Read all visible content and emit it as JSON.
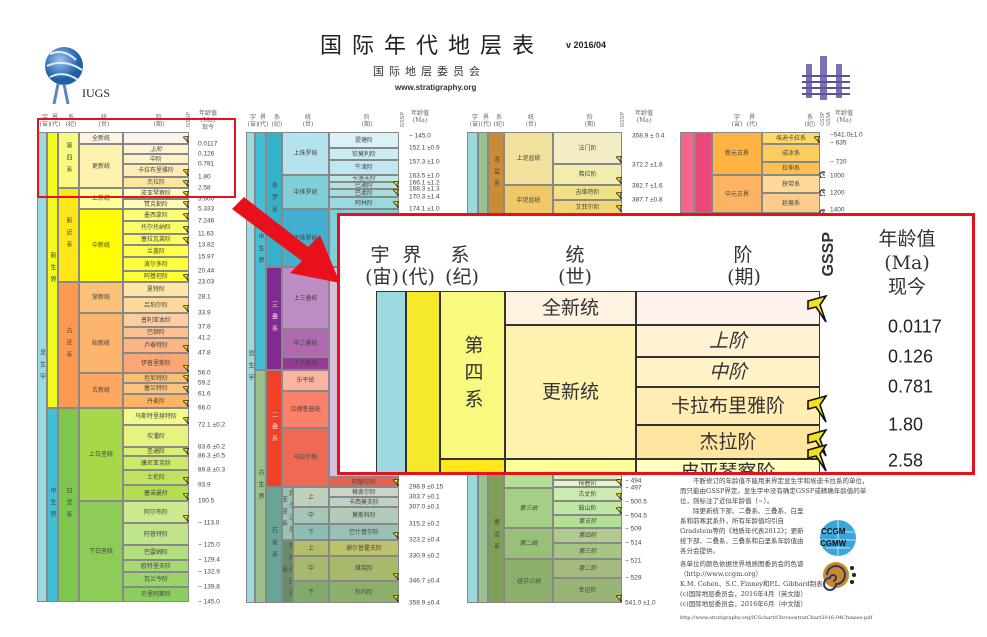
{
  "header": {
    "title": "国际年代地层表",
    "version": "v 2016/04",
    "subtitle": "国际地层委员会",
    "site": "www.stratigraphy.org"
  },
  "logos": {
    "iugs": "IUGS",
    "ccgm_top": "CCGM",
    "ccgm_bottom": "CGMW"
  },
  "colors": {
    "highlight": "#e8101a",
    "gssp_spike": "#f5e21a"
  },
  "col_headers": {
    "eon": "宇",
    "eon_sub": "(宙)",
    "era": "界",
    "era_sub": "(代)",
    "period": "系",
    "period_sub": "(纪)",
    "series": "统",
    "series_sub": "(世)",
    "stage": "阶",
    "stage_sub": "(期)",
    "gssp": "GSSP",
    "gssa": "GSSA",
    "age": "年龄值",
    "age_unit": "(Ma)",
    "age_now": "现今"
  },
  "col1": {
    "eon": {
      "name": "显生宇",
      "color": "#9ad9dd"
    },
    "eras": [
      {
        "name": "新生界",
        "color": "#f2f91d"
      },
      {
        "name": "中生界",
        "color": "#45bdd3"
      }
    ],
    "periods": [
      {
        "name": "第四系",
        "color": "#f9f97f"
      },
      {
        "name": "新近系",
        "color": "#ffe619"
      },
      {
        "name": "古近系",
        "color": "#fd9a52"
      },
      {
        "name": "白垩系",
        "color": "#7fc64e"
      }
    ],
    "series": [
      {
        "name": "全新统",
        "color": "#fef2e0"
      },
      {
        "name": "更新统",
        "color": "#fff2ae"
      },
      {
        "name": "上新统",
        "color": "#ffff99"
      },
      {
        "name": "中新统",
        "color": "#ffff00"
      },
      {
        "name": "渐新统",
        "color": "#fdc07a"
      },
      {
        "name": "始新统",
        "color": "#fdb46c"
      },
      {
        "name": "古新统",
        "color": "#fda75f"
      },
      {
        "name": "上白垩统",
        "color": "#a6d84a"
      },
      {
        "name": "下白垩统",
        "color": "#8ccd57"
      }
    ],
    "stages": [
      {
        "name": "",
        "color": "#fef2ec",
        "gssp": true
      },
      {
        "name": "上阶",
        "color": "#fff2d3",
        "gssp": false
      },
      {
        "name": "中阶",
        "color": "#fff2c7",
        "gssp": false
      },
      {
        "name": "卡拉布里雅阶",
        "color": "#ffedb3",
        "gssp": true
      },
      {
        "name": "杰拉阶",
        "color": "#ffe6a0",
        "gssp": true
      },
      {
        "name": "皮亚琴察阶",
        "color": "#ffffbf",
        "gssp": true
      },
      {
        "name": "赞克勒阶",
        "color": "#ffffb3",
        "gssp": true
      },
      {
        "name": "墨西拿阶",
        "color": "#ffff73",
        "gssp": true
      },
      {
        "name": "托尔托纳阶",
        "color": "#ffff66",
        "gssp": true
      },
      {
        "name": "塞拉瓦莱阶",
        "color": "#ffff59",
        "gssp": true
      },
      {
        "name": "兰盖阶",
        "color": "#ffff4d",
        "gssp": false
      },
      {
        "name": "波尔多阶",
        "color": "#ffff41",
        "gssp": false
      },
      {
        "name": "阿基坦阶",
        "color": "#ffff33",
        "gssp": true
      },
      {
        "name": "夏特阶",
        "color": "#fee6aa",
        "gssp": false
      },
      {
        "name": "吕珀尔阶",
        "color": "#fed99a",
        "gssp": true
      },
      {
        "name": "普利亚本阶",
        "color": "#fdcda1",
        "gssp": false
      },
      {
        "name": "巴顿阶",
        "color": "#fdc091",
        "gssp": false
      },
      {
        "name": "卢泰特阶",
        "color": "#fcb482",
        "gssp": true
      },
      {
        "name": "伊普里斯阶",
        "color": "#fca773",
        "gssp": true
      },
      {
        "name": "坦尼特阶",
        "color": "#fdbf6f",
        "gssp": true
      },
      {
        "name": "塞兰特阶",
        "color": "#fec47e",
        "gssp": true
      },
      {
        "name": "丹麦阶",
        "color": "#fdb462",
        "gssp": true
      },
      {
        "name": "马斯特里赫特阶",
        "color": "#f2fa8c",
        "gssp": true
      },
      {
        "name": "坎潘阶",
        "color": "#e6f47f",
        "gssp": false
      },
      {
        "name": "圣通阶",
        "color": "#d9ef74",
        "gssp": true
      },
      {
        "name": "康尼亚克阶",
        "color": "#cce968",
        "gssp": false
      },
      {
        "name": "土伦阶",
        "color": "#bfe35d",
        "gssp": true
      },
      {
        "name": "塞诺曼阶",
        "color": "#b3de53",
        "gssp": true
      },
      {
        "name": "阿尔布阶",
        "color": "#cce98d",
        "gssp": true
      },
      {
        "name": "阿普特阶",
        "color": "#bfe48a",
        "gssp": false
      },
      {
        "name": "巴雷姆阶",
        "color": "#b3df7f",
        "gssp": false
      },
      {
        "name": "欧特里夫阶",
        "color": "#a6d975",
        "gssp": false
      },
      {
        "name": "瓦兰今阶",
        "color": "#99d36a",
        "gssp": false
      },
      {
        "name": "贝里阿斯阶",
        "color": "#8ccd60",
        "gssp": false
      }
    ],
    "ages": [
      "0.0117",
      "0.126",
      "0.781",
      "1.80",
      "2.58",
      "3.600",
      "5.333",
      "7.246",
      "11.63",
      "13.82",
      "15.97",
      "20.44",
      "23.03",
      "28.1",
      "33.9",
      "37.8",
      "41.2",
      "47.8",
      "56.0",
      "59.2",
      "61.6",
      "66.0",
      "72.1 ±0.2",
      "83.6 ±0.2",
      "86.3 ±0.5",
      "89.8 ±0.3",
      "93.9",
      "100.5",
      "~ 113.0",
      "~ 125.0",
      "~ 129.4",
      "~ 132.9",
      "~ 139.8",
      "~ 145.0"
    ]
  },
  "col2": {
    "eon": {
      "name": "显生宇",
      "color": "#9ad9dd"
    },
    "eras": [
      {
        "name": "中生界",
        "color": "#45bdd3"
      },
      {
        "name": "古生界",
        "color": "#99c08d"
      }
    ],
    "periods": [
      {
        "name": "侏罗系",
        "color": "#34b2c9"
      },
      {
        "name": "三叠系",
        "color": "#812b92"
      },
      {
        "name": "二叠系",
        "color": "#f04028"
      },
      {
        "name": "石炭系",
        "color": "#67a599"
      }
    ],
    "subsystems": [
      {
        "name": "宾夕法尼亚亚系",
        "color": "#99c2b5"
      },
      {
        "name": "密西西比亚系",
        "color": "#678f66"
      }
    ],
    "series": [
      {
        "name": "上侏罗统",
        "color": "#b3e3ee"
      },
      {
        "name": "中侏罗统",
        "color": "#80cfd8"
      },
      {
        "name": "下侏罗统",
        "color": "#42aed0"
      },
      {
        "name": "上三叠统",
        "color": "#bd8cc3"
      },
      {
        "name": "中三叠统",
        "color": "#b168b1"
      },
      {
        "name": "下三叠统",
        "color": "#983999"
      },
      {
        "name": "乐平统",
        "color": "#fbb4a1"
      },
      {
        "name": "瓜德鲁普统",
        "color": "#fb8069"
      },
      {
        "name": "乌拉尔统",
        "color": "#ef6a55"
      }
    ],
    "carb_series": [
      {
        "name": "上",
        "color": "#bfd0ba"
      },
      {
        "name": "中",
        "color": "#a6c7b7"
      },
      {
        "name": "下",
        "color": "#8cbeb4"
      },
      {
        "name": "上",
        "color": "#b3be6c"
      },
      {
        "name": "中",
        "color": "#a6b96c"
      },
      {
        "name": "下",
        "color": "#80ab6c"
      }
    ],
    "stages_top": [
      {
        "name": "提塘阶",
        "color": "#d9f1f7",
        "gssp": false
      },
      {
        "name": "钦莫利阶",
        "color": "#ccecf4",
        "gssp": false
      },
      {
        "name": "牛津阶",
        "color": "#bfe7f1",
        "gssp": false
      },
      {
        "name": "卡洛夫阶",
        "color": "#bfe7e5",
        "gssp": false
      },
      {
        "name": "巴通阶",
        "color": "#b3e2e3",
        "gssp": true
      },
      {
        "name": "巴柔阶",
        "color": "#a6dde0",
        "gssp": true
      },
      {
        "name": "阿林阶",
        "color": "#9ad9dd",
        "gssp": true
      }
    ],
    "stages_bottom": [
      {
        "name": "阿瑟尔阶",
        "color": "#e36350",
        "gssp": true
      },
      {
        "name": "格舍尔阶",
        "color": "#ccd4c7",
        "gssp": false
      },
      {
        "name": "卡西莫夫阶",
        "color": "#bfd0c5",
        "gssp": false
      },
      {
        "name": "莫斯科阶",
        "color": "#b3cbb9",
        "gssp": false
      },
      {
        "name": "巴什基尔阶",
        "color": "#99c2b5",
        "gssp": true
      },
      {
        "name": "谢尔普霍夫阶",
        "color": "#bfc26b",
        "gssp": false
      },
      {
        "name": "维宪阶",
        "color": "#a6b96c",
        "gssp": true
      },
      {
        "name": "杜内阶",
        "color": "#8cb06c",
        "gssp": true
      }
    ],
    "ages_top": [
      "~ 145.0",
      "152.1 ±0.9",
      "157.3 ±1.0",
      "163.5 ±1.0",
      "166.1 ±1.2",
      "168.3 ±1.3",
      "170.3 ±1.4",
      "174.1 ±1.0"
    ],
    "ages_bottom": [
      "298.9 ±0.15",
      "303.7 ±0.1",
      "307.0 ±0.1",
      "315.2 ±0.2",
      "323.2 ±0.4",
      "330.9 ±0.2",
      "346.7 ±0.4",
      "358.9 ±0.4"
    ]
  },
  "col3": {
    "eon": {
      "color": "#9ad9dd"
    },
    "era": {
      "color": "#99c08d"
    },
    "periods": [
      {
        "name": "泥盆系",
        "color": "#cb8c37"
      },
      {
        "name": "寒武系",
        "color": "#7fa056"
      }
    ],
    "series_top": [
      {
        "name": "上泥盆统",
        "color": "#f1e19d"
      },
      {
        "name": "中泥盆统",
        "color": "#f1c868"
      }
    ],
    "stages_top": [
      {
        "name": "法门阶",
        "color": "#f2edc5",
        "gssp": true
      },
      {
        "name": "弗拉阶",
        "color": "#f2edad",
        "gssp": true
      },
      {
        "name": "吉维特阶",
        "color": "#f1e185",
        "gssp": true
      },
      {
        "name": "艾菲尔阶",
        "color": "#f1d576",
        "gssp": true
      }
    ],
    "ages_top": [
      "358.9 ± 0.4",
      "372.2 ±1.6",
      "382.7 ±1.6",
      "387.7 ±0.8"
    ],
    "series_bottom": [
      {
        "name": "",
        "color": "#b3e095"
      },
      {
        "name": "第三统",
        "color": "#a6cf86"
      },
      {
        "name": "第二统",
        "color": "#99c078"
      },
      {
        "name": "纽芬兰统",
        "color": "#8cb06c"
      }
    ],
    "stages_bottom": [
      {
        "name": "",
        "color": "#d9f0bb",
        "gssp": false
      },
      {
        "name": "排碧阶",
        "color": "#e6f5c9",
        "gssp": true
      },
      {
        "name": "古丈阶",
        "color": "#ccebae",
        "gssp": true
      },
      {
        "name": "鼓山阶",
        "color": "#c0e6a3",
        "gssp": true
      },
      {
        "name": "第五阶",
        "color": "#b3e095",
        "gssp": false
      },
      {
        "name": "第四阶",
        "color": "#b3ca8e",
        "gssp": false
      },
      {
        "name": "第三阶",
        "color": "#a6c583",
        "gssp": false
      },
      {
        "name": "第二阶",
        "color": "#a6ba80",
        "gssp": false
      },
      {
        "name": "幸运阶",
        "color": "#99b575",
        "gssp": true
      }
    ],
    "ages_bottom": [
      "~ 494",
      "~ 497",
      "~ 500.5",
      "~ 504.5",
      "~ 509",
      "~ 514",
      "~ 521",
      "~ 529",
      "541.0 ±1.0"
    ]
  },
  "col4": {
    "eon_colors": [
      "#f2688c",
      "#e8487a"
    ],
    "eras": [
      {
        "name": "新元古界",
        "color": "#feb342"
      },
      {
        "name": "中元古界",
        "color": "#fdb462"
      }
    ],
    "systems": [
      {
        "name": "埃迪卡拉系",
        "color": "#fed96a",
        "marker": "spike"
      },
      {
        "name": "成冰系",
        "color": "#fecc5c",
        "marker": "none"
      },
      {
        "name": "拉伸系",
        "color": "#febf4e",
        "marker": "clock"
      },
      {
        "name": "狭带系",
        "color": "#fed99a",
        "marker": "clock"
      },
      {
        "name": "延展系",
        "color": "#fdcc8a",
        "marker": "clock"
      }
    ],
    "ages": [
      "~541.0±1.0",
      "~ 635",
      "~ 720",
      "1000",
      "1200",
      "1400"
    ]
  },
  "inset": {
    "headers": {
      "eon": "宇",
      "eon_sub": "(宙)",
      "era": "界",
      "era_sub": "(代)",
      "period": "系",
      "period_sub": "(纪)",
      "series": "统",
      "series_sub": "(世)",
      "stage": "阶",
      "stage_sub": "(期)",
      "gssp": "GSSP",
      "age": "年龄值",
      "age_unit": "(Ma)",
      "age_now": "现今"
    },
    "period": "第四系",
    "series": [
      "全新统",
      "更新统"
    ],
    "stages": [
      "",
      "上阶",
      "中阶",
      "卡拉布里雅阶",
      "杰拉阶",
      "皮亚琴察阶"
    ],
    "ages": [
      "0.0117",
      "0.126",
      "0.781",
      "1.80",
      "2.58"
    ]
  },
  "footer": {
    "p1": "不断修订的年龄值不能用来界定显生宇和埃迪卡拉系的单位，而只能由GSSP界定。显生宇中没有确定GSSP或精确年龄值的单位，则标注了近似年龄值（~）。",
    "p2": "除更新统下部、二叠系、三叠系、白垩系和前寒武系外，所有年龄值均引自Gradstein等的《地质年代表2012》；更新统下部、二叠系、三叠系和白垩系年龄值由各分会提供。",
    "p3": "各单位的颜色依据世界地质图委员会的色谱（http://www.ccgm.org）",
    "p4": "K.M. Cohen、S.C. Finney和P.L. Gibbard制表",
    "p5": "(c)国际地层委员会，2016年4月（英文版）",
    "p6": "(c)国际地层委员会，2016年6月（中文版）",
    "url": "http://www.stratigraphy.org/ICSchart/ChronostratChart2016-04Chinese.pdf"
  }
}
